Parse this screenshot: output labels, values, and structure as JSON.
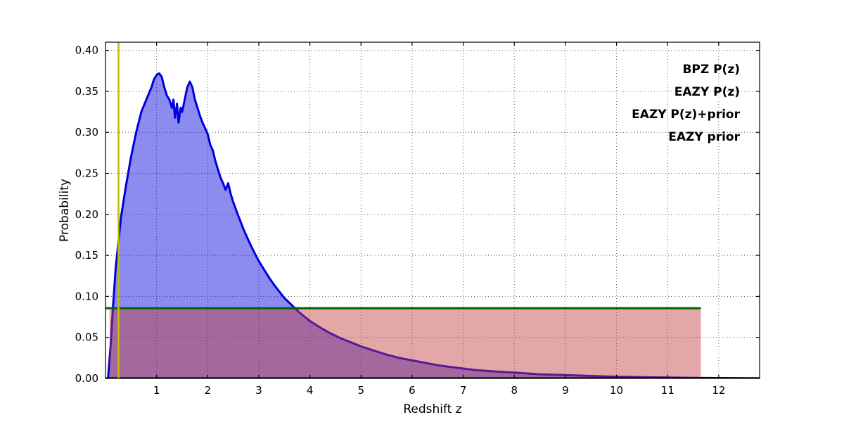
{
  "figure": {
    "background": "#ffffff"
  },
  "chart_data": {
    "type": "line",
    "title": "",
    "xlabel": "Redshift z",
    "ylabel": "Probability",
    "xlim": [
      0,
      12.8
    ],
    "ylim": [
      0,
      0.41
    ],
    "xticks": [
      1,
      2,
      3,
      4,
      5,
      6,
      7,
      8,
      9,
      10,
      11,
      12
    ],
    "yticks": [
      0,
      0.05,
      0.1,
      0.15,
      0.2,
      0.25,
      0.3,
      0.35,
      0.4
    ],
    "grid": true,
    "grid_style": "dotted",
    "legend": {
      "position": "upper-right",
      "items": [
        {
          "label": "BPZ P(z)",
          "color": "#0000ee"
        },
        {
          "label": "EAZY P(z)",
          "color": "#ee0000"
        },
        {
          "label": "EAZY P(z)+prior",
          "color": "#008000"
        },
        {
          "label": "EAZY prior",
          "color": "#000000"
        }
      ]
    },
    "series": [
      {
        "name": "BPZ P(z)",
        "color": "#0000dd",
        "line_width": 3,
        "fill": true,
        "fill_opacity": 0.45,
        "x": [
          0.05,
          0.1,
          0.15,
          0.2,
          0.25,
          0.3,
          0.35,
          0.4,
          0.5,
          0.6,
          0.7,
          0.8,
          0.9,
          0.95,
          1.0,
          1.05,
          1.1,
          1.15,
          1.2,
          1.25,
          1.3,
          1.33,
          1.36,
          1.4,
          1.43,
          1.47,
          1.5,
          1.55,
          1.6,
          1.65,
          1.7,
          1.75,
          1.8,
          1.85,
          1.9,
          1.95,
          2.0,
          2.05,
          2.1,
          2.15,
          2.2,
          2.25,
          2.3,
          2.35,
          2.4,
          2.45,
          2.5,
          2.6,
          2.7,
          2.8,
          2.9,
          3.0,
          3.1,
          3.2,
          3.3,
          3.4,
          3.5,
          3.6,
          3.7,
          3.8,
          3.9,
          4.0,
          4.2,
          4.4,
          4.6,
          4.8,
          5.0,
          5.25,
          5.5,
          5.75,
          6.0,
          6.25,
          6.5,
          6.75,
          7.0,
          7.25,
          7.5,
          7.75,
          8.0,
          8.5,
          9.0,
          9.5,
          10.0,
          10.5,
          11.0,
          11.5,
          12.0,
          12.5,
          12.8
        ],
        "y": [
          0.0,
          0.04,
          0.09,
          0.135,
          0.165,
          0.195,
          0.215,
          0.235,
          0.27,
          0.3,
          0.325,
          0.34,
          0.355,
          0.365,
          0.37,
          0.372,
          0.368,
          0.355,
          0.345,
          0.34,
          0.33,
          0.34,
          0.318,
          0.335,
          0.312,
          0.33,
          0.325,
          0.34,
          0.355,
          0.362,
          0.355,
          0.34,
          0.33,
          0.32,
          0.312,
          0.305,
          0.298,
          0.285,
          0.278,
          0.265,
          0.255,
          0.245,
          0.238,
          0.23,
          0.238,
          0.225,
          0.215,
          0.198,
          0.182,
          0.168,
          0.155,
          0.143,
          0.133,
          0.123,
          0.114,
          0.106,
          0.098,
          0.092,
          0.086,
          0.08,
          0.075,
          0.07,
          0.062,
          0.055,
          0.049,
          0.044,
          0.039,
          0.034,
          0.029,
          0.025,
          0.022,
          0.019,
          0.016,
          0.014,
          0.012,
          0.01,
          0.009,
          0.008,
          0.007,
          0.005,
          0.004,
          0.003,
          0.002,
          0.0015,
          0.001,
          0.0007,
          0.0004,
          0.0002,
          0.0001
        ]
      },
      {
        "name": "EAZY P(z)",
        "color": "#c23b3b",
        "line_width": 0,
        "fill": true,
        "fill_opacity": 0.45,
        "x": [
          0.08,
          0.08,
          11.65,
          11.65
        ],
        "y": [
          0.0,
          0.0855,
          0.0855,
          0.0
        ]
      },
      {
        "name": "EAZY P(z)+prior",
        "color": "#006400",
        "line_width": 3,
        "fill": false,
        "x": [
          0.0,
          11.65
        ],
        "y": [
          0.0855,
          0.0855
        ]
      },
      {
        "name": "EAZY prior",
        "color": "#000000",
        "line_width": 1.5,
        "fill": false,
        "x": [
          0.0,
          12.8
        ],
        "y": [
          0.0008,
          0.0008
        ]
      },
      {
        "name": "redshift marker",
        "color": "#bfbf00",
        "line_width": 2.5,
        "fill": false,
        "x": [
          0.255,
          0.255
        ],
        "y": [
          0.0,
          0.41
        ]
      }
    ]
  }
}
